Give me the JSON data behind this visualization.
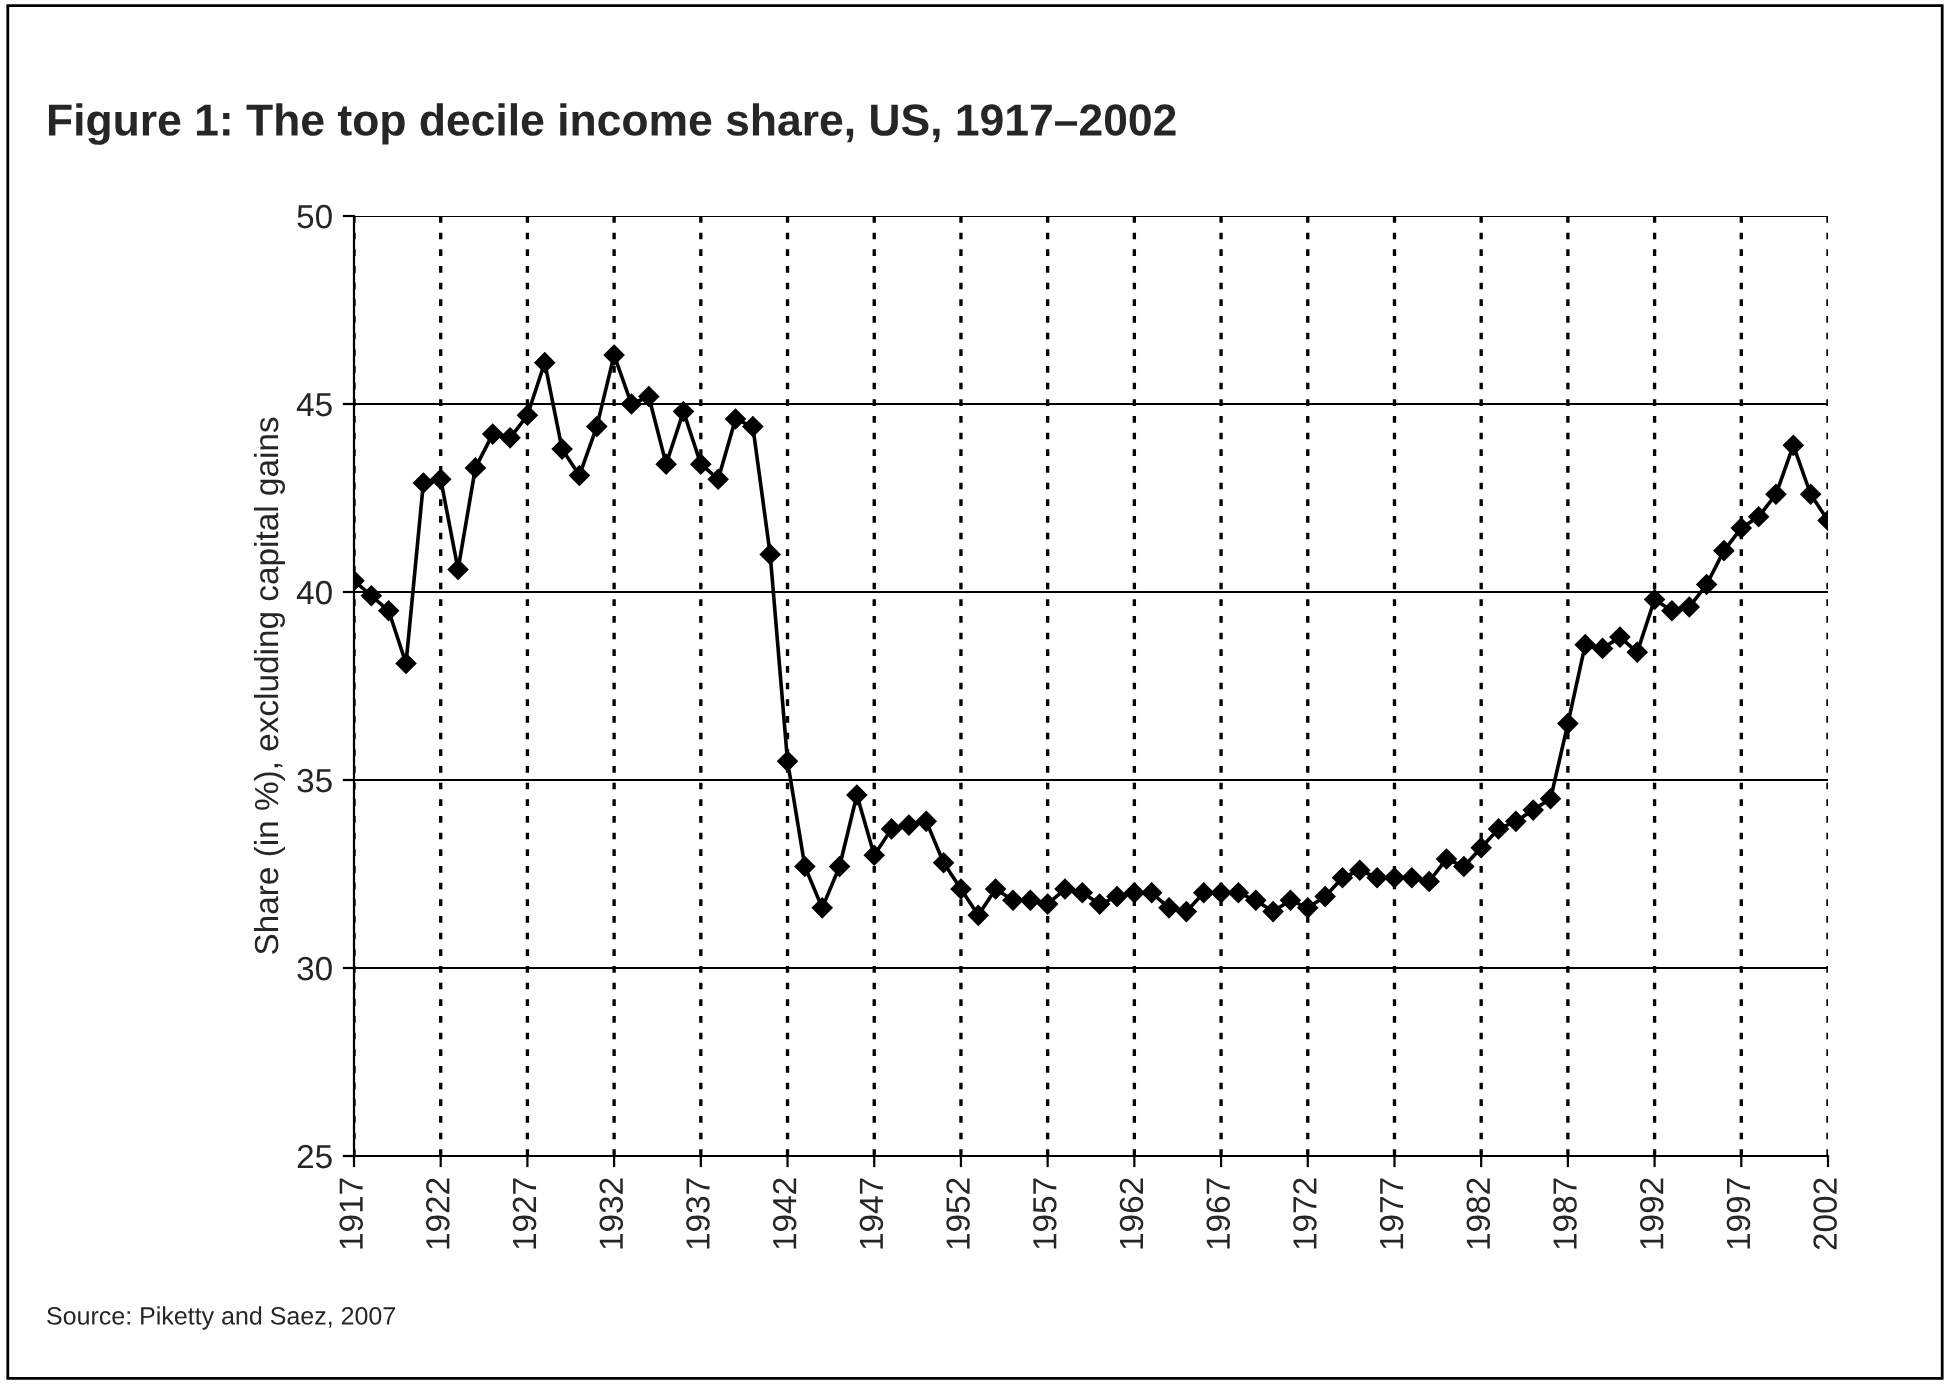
{
  "chart_data": {
    "type": "line",
    "title": "Figure 1: The top decile income share, US, 1917–2002",
    "ylabel": "Share (in %), excluding capital gains",
    "annotations": [
      "Source: Piketty and Saez, 2007"
    ],
    "x": [
      1917,
      1918,
      1919,
      1920,
      1921,
      1922,
      1923,
      1924,
      1925,
      1926,
      1927,
      1928,
      1929,
      1930,
      1931,
      1932,
      1933,
      1934,
      1935,
      1936,
      1937,
      1938,
      1939,
      1940,
      1941,
      1942,
      1943,
      1944,
      1945,
      1946,
      1947,
      1948,
      1949,
      1950,
      1951,
      1952,
      1953,
      1954,
      1955,
      1956,
      1957,
      1958,
      1959,
      1960,
      1961,
      1962,
      1963,
      1964,
      1965,
      1966,
      1967,
      1968,
      1969,
      1970,
      1971,
      1972,
      1973,
      1974,
      1975,
      1976,
      1977,
      1978,
      1979,
      1980,
      1981,
      1982,
      1983,
      1984,
      1985,
      1986,
      1987,
      1988,
      1989,
      1990,
      1991,
      1992,
      1993,
      1994,
      1995,
      1996,
      1997,
      1998,
      1999,
      2000,
      2001,
      2002
    ],
    "series": [
      {
        "color": "#000000",
        "values": [
          40.3,
          39.9,
          39.5,
          38.1,
          42.9,
          43.0,
          40.6,
          43.3,
          44.2,
          44.1,
          44.7,
          46.1,
          43.8,
          43.1,
          44.4,
          46.3,
          45.0,
          45.2,
          43.4,
          44.8,
          43.4,
          43.0,
          44.6,
          44.4,
          41.0,
          35.5,
          32.7,
          31.6,
          32.7,
          34.6,
          33.0,
          33.7,
          33.8,
          33.9,
          32.8,
          32.1,
          31.4,
          32.1,
          31.8,
          31.8,
          31.7,
          32.1,
          32.0,
          31.7,
          31.9,
          32.0,
          32.0,
          31.6,
          31.5,
          32.0,
          32.0,
          32.0,
          31.8,
          31.5,
          31.8,
          31.6,
          31.9,
          32.4,
          32.6,
          32.4,
          32.4,
          32.4,
          32.3,
          32.9,
          32.7,
          33.2,
          33.7,
          33.9,
          34.2,
          34.5,
          36.5,
          38.6,
          38.5,
          38.8,
          38.4,
          39.8,
          39.5,
          39.6,
          40.2,
          41.1,
          41.7,
          42.0,
          42.6,
          43.9,
          42.6,
          41.9
        ]
      }
    ],
    "xlim": [
      1917,
      2002
    ],
    "xticks": [
      1917,
      1922,
      1927,
      1932,
      1937,
      1942,
      1947,
      1952,
      1957,
      1962,
      1967,
      1972,
      1977,
      1982,
      1987,
      1992,
      1997,
      2002
    ],
    "ylim": [
      25,
      50
    ],
    "yticks": [
      25,
      30,
      35,
      40,
      45,
      50
    ],
    "grid": true,
    "marker": "diamond",
    "line_style": "solid"
  }
}
